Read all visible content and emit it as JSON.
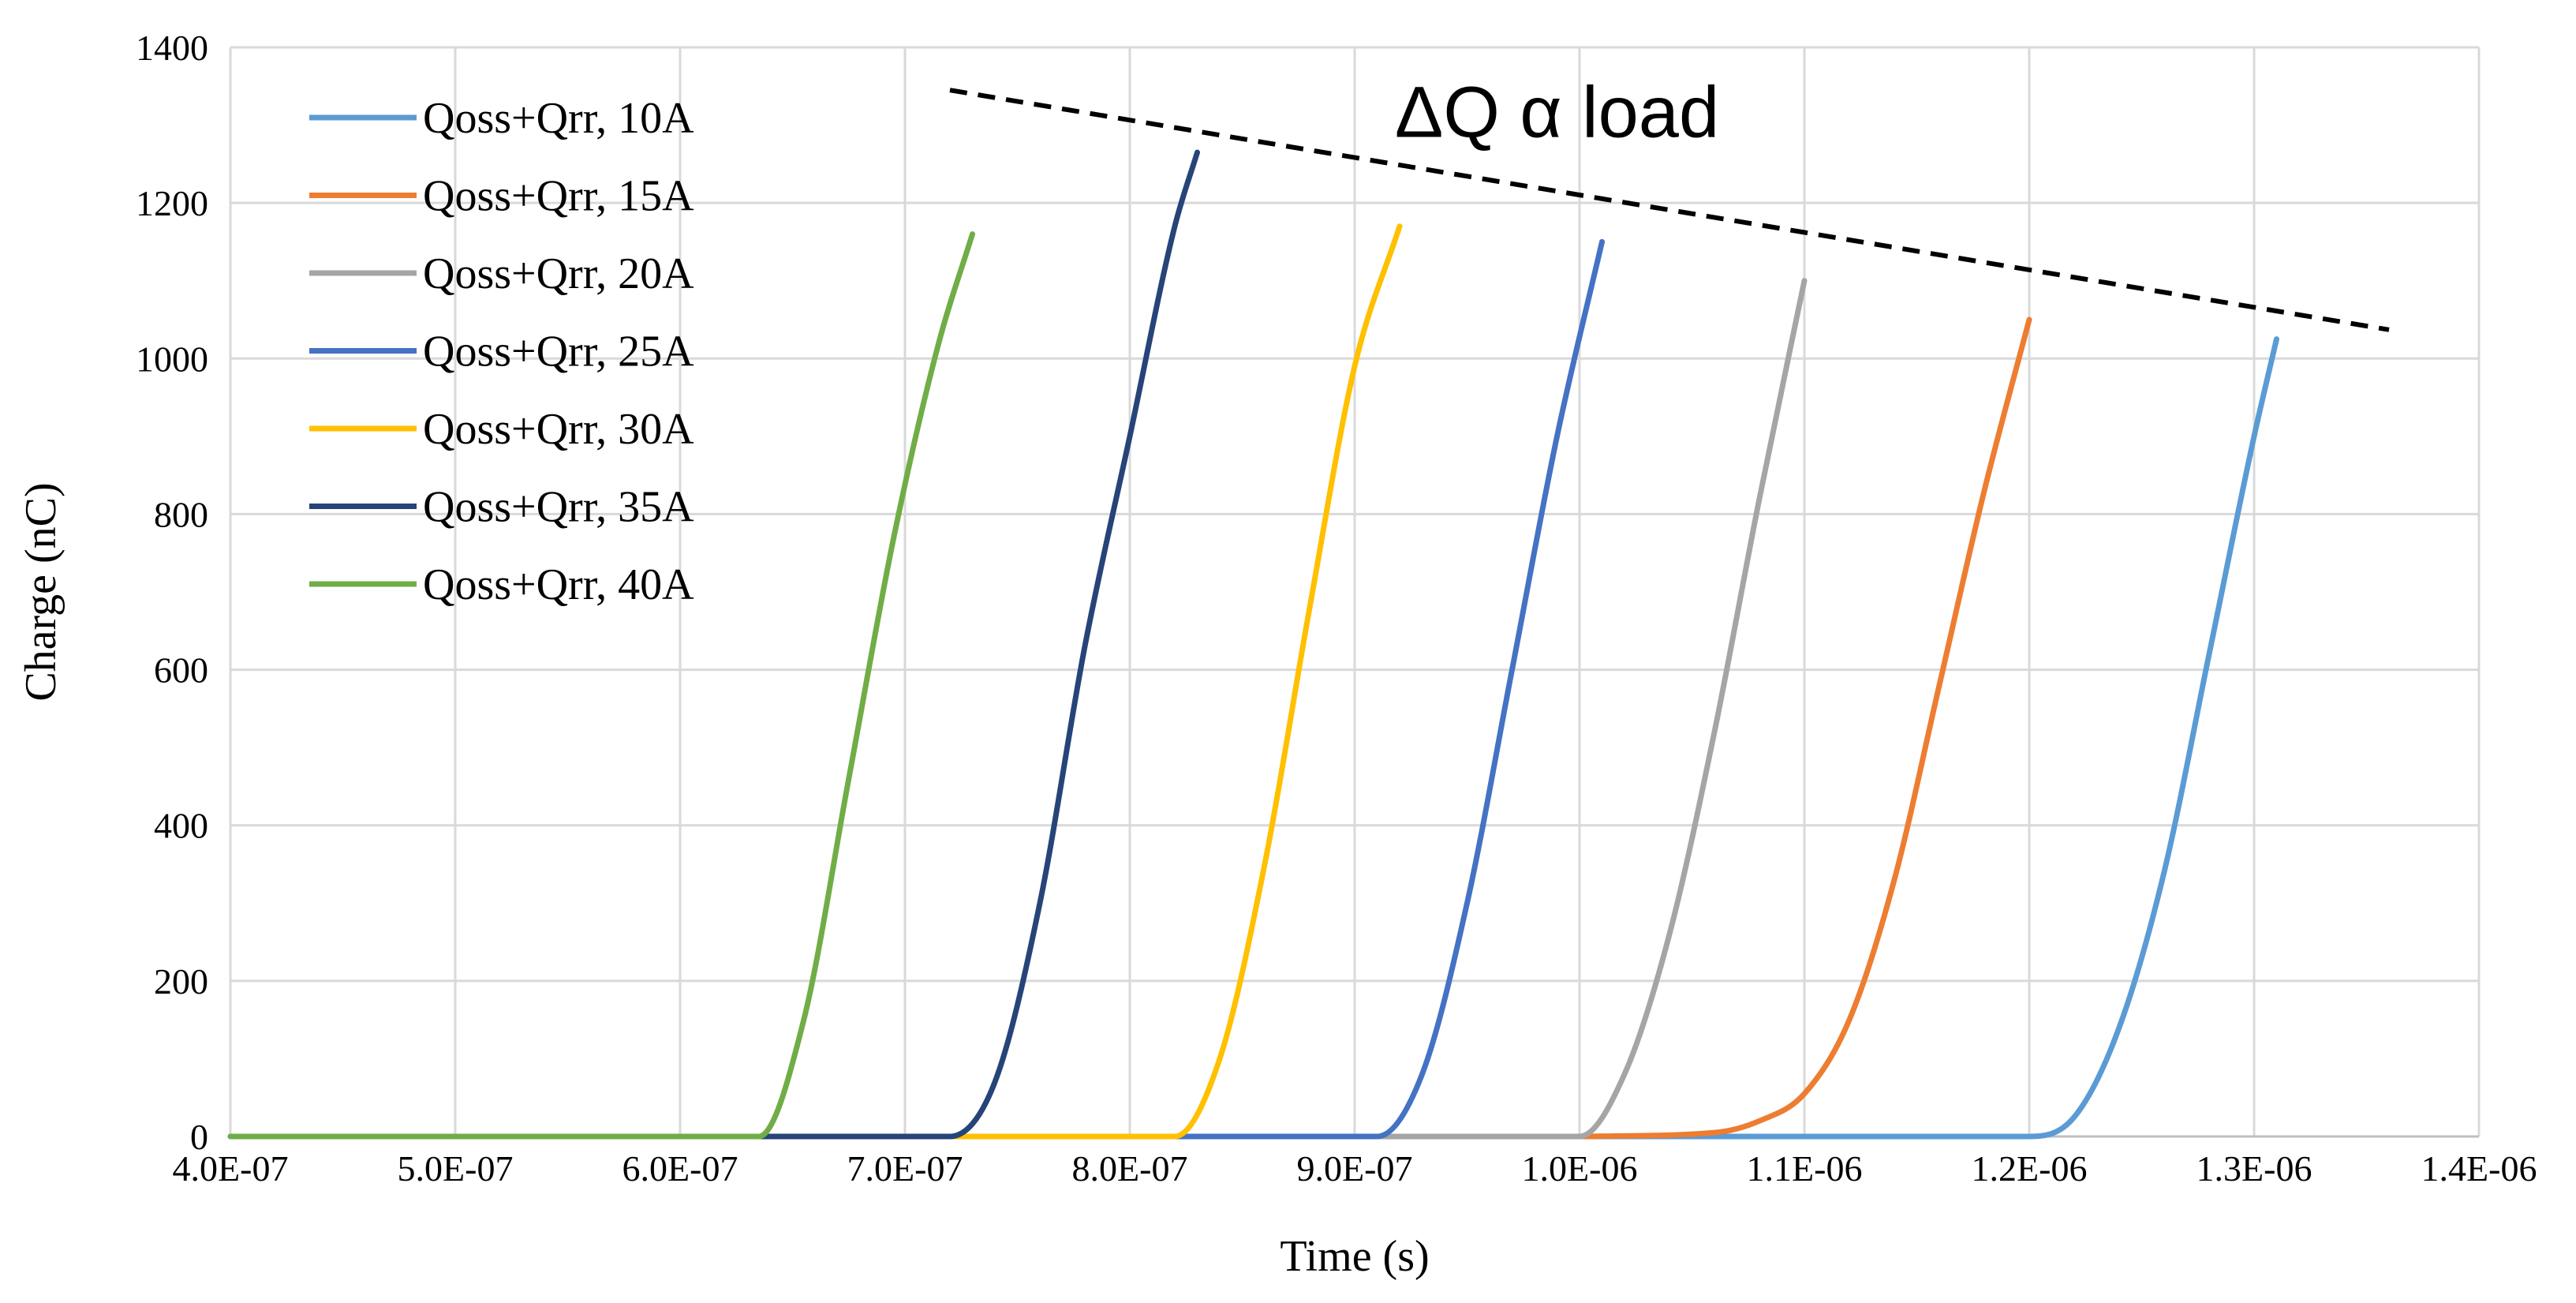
{
  "chart_data": {
    "type": "line",
    "title": "",
    "xlabel": "Time (s)",
    "ylabel": "Charge (nC)",
    "xlim": [
      4e-07,
      1.4e-06
    ],
    "ylim": [
      0,
      1400
    ],
    "grid": true,
    "legend_position": "top-left",
    "x_ticks": [
      4e-07,
      5e-07,
      6e-07,
      7e-07,
      8e-07,
      9e-07,
      1e-06,
      1.1e-06,
      1.2e-06,
      1.3e-06,
      1.4e-06
    ],
    "x_tick_labels": [
      "4.0E-07",
      "5.0E-07",
      "6.0E-07",
      "7.0E-07",
      "8.0E-07",
      "9.0E-07",
      "1.0E-06",
      "1.1E-06",
      "1.2E-06",
      "1.3E-06",
      "1.4E-06"
    ],
    "y_ticks": [
      0,
      200,
      400,
      600,
      800,
      1000,
      1200,
      1400
    ],
    "y_tick_labels": [
      "0",
      "200",
      "400",
      "600",
      "800",
      "1000",
      "1200",
      "1400"
    ],
    "series": [
      {
        "name": "Qoss+Qrr, 10A",
        "color": "#5B9BD5",
        "x": [
          4e-07,
          1.2e-06,
          1.22e-06,
          1.24e-06,
          1.26e-06,
          1.28e-06,
          1.3e-06,
          1.31e-06
        ],
        "y": [
          0,
          0,
          25,
          140,
          340,
          620,
          900,
          1025
        ]
      },
      {
        "name": "Qoss+Qrr, 15A",
        "color": "#ED7D31",
        "x": [
          1e-06,
          1.06e-06,
          1.08e-06,
          1.1e-06,
          1.12e-06,
          1.14e-06,
          1.16e-06,
          1.18e-06,
          1.2e-06
        ],
        "y": [
          0,
          5,
          20,
          55,
          150,
          330,
          580,
          830,
          1050
        ]
      },
      {
        "name": "Qoss+Qrr, 20A",
        "color": "#A5A5A5",
        "x": [
          8.2e-07,
          1e-06,
          1.02e-06,
          1.04e-06,
          1.06e-06,
          1.08e-06,
          1.1e-06
        ],
        "y": [
          0,
          0,
          80,
          260,
          520,
          820,
          1100
        ]
      },
      {
        "name": "Qoss+Qrr, 25A",
        "color": "#4472C4",
        "x": [
          7.2e-07,
          9.1e-07,
          9.3e-07,
          9.5e-07,
          9.7e-07,
          9.9e-07,
          1.01e-06
        ],
        "y": [
          0,
          0,
          80,
          300,
          600,
          900,
          1150
        ]
      },
      {
        "name": "Qoss+Qrr, 30A",
        "color": "#FFC000",
        "x": [
          5.8e-07,
          8.2e-07,
          8.4e-07,
          8.6e-07,
          8.8e-07,
          9e-07,
          9.2e-07
        ],
        "y": [
          0,
          0,
          100,
          350,
          680,
          990,
          1170
        ]
      },
      {
        "name": "Qoss+Qrr, 35A",
        "color": "#264478",
        "x": [
          6.3e-07,
          7.2e-07,
          7.4e-07,
          7.6e-07,
          7.8e-07,
          8e-07,
          8.2e-07,
          8.3e-07
        ],
        "y": [
          0,
          0,
          70,
          300,
          630,
          900,
          1170,
          1265
        ]
      },
      {
        "name": "Qoss+Qrr, 40A",
        "color": "#70AD47",
        "x": [
          4e-07,
          6.35e-07,
          6.55e-07,
          6.75e-07,
          6.95e-07,
          7.15e-07,
          7.3e-07
        ],
        "y": [
          0,
          0,
          150,
          460,
          770,
          1020,
          1160
        ]
      }
    ],
    "annotations": [
      {
        "text": "ΔQ α load",
        "x": 9.9e-07,
        "y": 1285
      },
      {
        "text": "",
        "type": "dashed-trend-line",
        "x": [
          7.2e-07,
          1.36e-06
        ],
        "y": [
          1345,
          1037
        ]
      }
    ]
  }
}
